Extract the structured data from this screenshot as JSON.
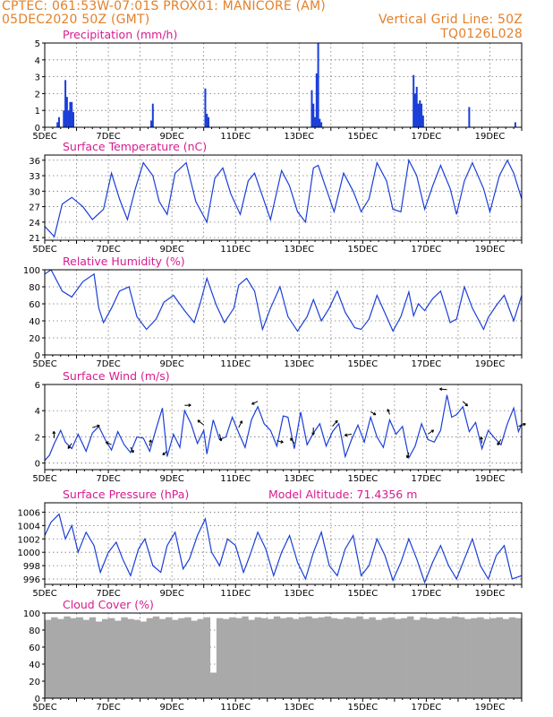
{
  "header": {
    "line1_left": "CPTEC:   061:53W-07:01S   PROX01: MANICORE (AM)",
    "line2_left": "05DEC2020 50Z (GMT)",
    "line2_right": "Vertical Grid Line: 50Z",
    "line3_right": "TQ0126L028"
  },
  "colors": {
    "series": "#1a3ed8",
    "title": "#d81b8f",
    "header": "#e3812a",
    "grid": "#777777",
    "cloud_fill": "#a9a9a9"
  },
  "x_tick_labels": [
    "5DEC",
    "7DEC",
    "9DEC",
    "11DEC",
    "13DEC",
    "15DEC",
    "17DEC",
    "19DEC"
  ],
  "chart_data": [
    {
      "type": "bar",
      "title": "Precipitation (mm/h)",
      "ylim": [
        0,
        5
      ],
      "yticks": [
        0,
        1,
        2,
        3,
        4,
        5
      ],
      "xlim": [
        5,
        20
      ],
      "grid": true,
      "x": [
        5.4,
        5.45,
        5.6,
        5.65,
        5.7,
        5.75,
        5.8,
        5.85,
        5.9,
        8.35,
        8.4,
        10.05,
        10.1,
        10.15,
        13.4,
        13.45,
        13.5,
        13.55,
        13.6,
        13.65,
        13.7,
        16.6,
        16.65,
        16.7,
        16.75,
        16.8,
        16.85,
        16.9,
        18.35,
        19.8
      ],
      "values": [
        0.3,
        0.6,
        1.0,
        2.8,
        1.8,
        1.0,
        1.5,
        1.5,
        0.9,
        0.4,
        1.4,
        2.3,
        0.8,
        0.6,
        2.2,
        1.4,
        0.6,
        3.2,
        5.0,
        0.5,
        0.3,
        3.1,
        2.0,
        2.4,
        1.4,
        1.6,
        1.4,
        0.7,
        1.2,
        0.3
      ]
    },
    {
      "type": "line",
      "title": "Surface Temperature (nC)",
      "ylim": [
        20.5,
        37
      ],
      "yticks": [
        21,
        24,
        27,
        30,
        33,
        36
      ],
      "xlim": [
        5,
        20
      ],
      "grid": true,
      "x": [
        5.0,
        5.3,
        5.55,
        5.85,
        6.2,
        6.5,
        6.85,
        7.1,
        7.35,
        7.6,
        7.85,
        8.1,
        8.4,
        8.6,
        8.85,
        9.1,
        9.45,
        9.75,
        10.1,
        10.35,
        10.6,
        10.85,
        11.15,
        11.4,
        11.6,
        11.85,
        12.1,
        12.45,
        12.7,
        12.95,
        13.2,
        13.45,
        13.6,
        13.85,
        14.1,
        14.4,
        14.7,
        14.95,
        15.2,
        15.45,
        15.75,
        15.95,
        16.2,
        16.45,
        16.7,
        16.95,
        17.2,
        17.45,
        17.75,
        17.95,
        18.2,
        18.45,
        18.8,
        19.0,
        19.3,
        19.55,
        19.75,
        20.0
      ],
      "values": [
        23.2,
        21.2,
        27.5,
        28.8,
        27.0,
        24.5,
        26.5,
        33.5,
        28.5,
        24.5,
        30.5,
        35.5,
        33.0,
        28.0,
        25.5,
        33.5,
        35.5,
        28.0,
        24.0,
        32.5,
        34.5,
        29.5,
        25.5,
        32.0,
        33.5,
        29.0,
        24.5,
        34.0,
        31.0,
        26.0,
        24.0,
        34.5,
        35.0,
        30.5,
        26.0,
        33.5,
        30.0,
        26.0,
        28.5,
        35.5,
        32.0,
        26.5,
        26.0,
        36.0,
        33.0,
        26.5,
        31.0,
        35.0,
        30.5,
        25.5,
        32.0,
        35.5,
        30.5,
        26.0,
        33.0,
        36.0,
        33.5,
        28.5
      ]
    },
    {
      "type": "line",
      "title": "Relative Humidity (%)",
      "ylim": [
        0,
        100
      ],
      "yticks": [
        0,
        20,
        40,
        60,
        80,
        100
      ],
      "xlim": [
        5,
        20
      ],
      "grid": true,
      "x": [
        5.0,
        5.2,
        5.55,
        5.85,
        6.2,
        6.55,
        6.7,
        6.85,
        7.1,
        7.35,
        7.65,
        7.9,
        8.2,
        8.5,
        8.75,
        9.05,
        9.4,
        9.7,
        9.9,
        10.1,
        10.4,
        10.65,
        10.95,
        11.1,
        11.35,
        11.6,
        11.85,
        12.1,
        12.4,
        12.65,
        12.95,
        13.25,
        13.45,
        13.7,
        13.95,
        14.2,
        14.45,
        14.75,
        14.95,
        15.2,
        15.45,
        15.75,
        15.95,
        16.2,
        16.45,
        16.6,
        16.75,
        16.95,
        17.2,
        17.45,
        17.75,
        17.95,
        18.2,
        18.45,
        18.8,
        18.95,
        19.2,
        19.45,
        19.75,
        20.0
      ],
      "values": [
        95,
        100,
        75,
        68,
        86,
        95,
        55,
        38,
        55,
        75,
        80,
        45,
        30,
        42,
        62,
        70,
        52,
        38,
        62,
        90,
        58,
        38,
        55,
        82,
        90,
        75,
        30,
        55,
        80,
        45,
        28,
        45,
        65,
        40,
        55,
        75,
        50,
        32,
        30,
        42,
        70,
        45,
        28,
        45,
        74,
        46,
        60,
        52,
        66,
        75,
        38,
        42,
        80,
        55,
        30,
        44,
        58,
        70,
        40,
        70
      ]
    },
    {
      "type": "line",
      "title": "Surface Wind (m/s)",
      "ylim": [
        -0.5,
        6
      ],
      "yticks": [
        0,
        2,
        4,
        6
      ],
      "xlim": [
        5,
        20
      ],
      "grid": true,
      "x": [
        5.0,
        5.15,
        5.3,
        5.5,
        5.65,
        5.85,
        6.05,
        6.3,
        6.5,
        6.7,
        6.9,
        7.1,
        7.3,
        7.5,
        7.7,
        7.9,
        8.1,
        8.3,
        8.5,
        8.7,
        8.85,
        9.05,
        9.25,
        9.4,
        9.6,
        9.8,
        10.0,
        10.1,
        10.3,
        10.5,
        10.7,
        10.9,
        11.1,
        11.3,
        11.5,
        11.7,
        11.9,
        12.1,
        12.3,
        12.5,
        12.65,
        12.85,
        13.05,
        13.25,
        13.45,
        13.65,
        13.85,
        14.05,
        14.25,
        14.45,
        14.65,
        14.85,
        15.05,
        15.25,
        15.45,
        15.65,
        15.85,
        16.05,
        16.25,
        16.45,
        16.65,
        16.85,
        17.05,
        17.25,
        17.45,
        17.65,
        17.8,
        17.95,
        18.15,
        18.35,
        18.55,
        18.75,
        18.95,
        19.15,
        19.35,
        19.55,
        19.75,
        19.9,
        20.0
      ],
      "values": [
        0.2,
        0.6,
        1.5,
        2.5,
        1.6,
        1.1,
        2.2,
        0.9,
        2.3,
        2.8,
        1.8,
        1.0,
        2.4,
        1.4,
        0.8,
        2.0,
        1.9,
        0.9,
        2.6,
        4.2,
        0.5,
        2.2,
        1.2,
        4.0,
        3.0,
        1.5,
        2.5,
        0.7,
        3.3,
        1.8,
        2.0,
        3.5,
        2.3,
        1.2,
        3.3,
        4.3,
        3.0,
        2.5,
        1.3,
        3.6,
        3.5,
        1.1,
        3.9,
        1.4,
        2.3,
        3.0,
        1.3,
        2.4,
        3.0,
        0.5,
        1.8,
        2.9,
        1.6,
        3.5,
        2.0,
        1.2,
        3.3,
        2.2,
        2.8,
        0.4,
        1.3,
        3.0,
        1.8,
        1.6,
        2.5,
        5.2,
        3.5,
        3.7,
        4.3,
        2.4,
        3.1,
        1.1,
        2.5,
        1.9,
        1.4,
        3.0,
        4.2,
        2.4,
        3.0
      ]
    },
    {
      "type": "line",
      "title": "Surface Pressure (hPa)",
      "annotation": "Model Altitude: 71.4356 m",
      "ylim": [
        995.2,
        1007.4
      ],
      "yticks": [
        996,
        998,
        1000,
        1002,
        1004,
        1006
      ],
      "xlim": [
        5,
        20
      ],
      "grid": true,
      "x": [
        5.0,
        5.2,
        5.45,
        5.65,
        5.85,
        6.05,
        6.3,
        6.55,
        6.75,
        7.0,
        7.25,
        7.45,
        7.7,
        7.95,
        8.15,
        8.4,
        8.65,
        8.85,
        9.1,
        9.35,
        9.55,
        9.8,
        10.05,
        10.25,
        10.5,
        10.75,
        11.0,
        11.25,
        11.45,
        11.7,
        11.95,
        12.2,
        12.45,
        12.7,
        12.95,
        13.2,
        13.45,
        13.7,
        13.95,
        14.2,
        14.45,
        14.7,
        14.95,
        15.2,
        15.45,
        15.7,
        15.95,
        16.2,
        16.45,
        16.7,
        16.95,
        17.2,
        17.45,
        17.7,
        17.95,
        18.2,
        18.45,
        18.7,
        18.95,
        19.2,
        19.45,
        19.7,
        20.0
      ],
      "values": [
        1002.5,
        1004.5,
        1005.7,
        1002.0,
        1004.0,
        1000.0,
        1003.0,
        1001.0,
        997.0,
        1000.0,
        1001.5,
        999.0,
        996.5,
        1000.5,
        1002.0,
        998.0,
        997.0,
        1001.0,
        1003.0,
        997.5,
        999.0,
        1002.5,
        1005.0,
        1000.0,
        998.0,
        1002.0,
        1001.0,
        997.0,
        999.5,
        1003.0,
        1000.5,
        996.5,
        1000.0,
        1002.5,
        998.5,
        996.0,
        1000.0,
        1003.0,
        998.0,
        996.5,
        1000.5,
        1002.5,
        996.5,
        998.0,
        1002.0,
        999.5,
        995.8,
        998.5,
        1002.0,
        999.0,
        995.5,
        998.5,
        1001.0,
        998.0,
        996.0,
        999.0,
        1002.0,
        998.0,
        996.0,
        999.5,
        1001.0,
        996.0,
        996.5
      ]
    },
    {
      "type": "area",
      "title": "Cloud Cover (%)",
      "ylim": [
        0,
        100
      ],
      "yticks": [
        0,
        20,
        40,
        60,
        80,
        100
      ],
      "xlim": [
        5,
        20
      ],
      "grid": true,
      "x": [
        5.0,
        5.2,
        5.4,
        5.6,
        5.8,
        6.0,
        6.2,
        6.4,
        6.6,
        6.8,
        7.0,
        7.2,
        7.4,
        7.6,
        7.8,
        8.0,
        8.2,
        8.4,
        8.6,
        8.8,
        9.0,
        9.2,
        9.4,
        9.6,
        9.8,
        10.0,
        10.2,
        10.4,
        10.6,
        10.8,
        11.0,
        11.2,
        11.4,
        11.6,
        11.8,
        12.0,
        12.2,
        12.4,
        12.6,
        12.8,
        13.0,
        13.2,
        13.4,
        13.6,
        13.8,
        14.0,
        14.2,
        14.4,
        14.6,
        14.8,
        15.0,
        15.2,
        15.4,
        15.6,
        15.8,
        16.0,
        16.2,
        16.4,
        16.6,
        16.8,
        17.0,
        17.2,
        17.4,
        17.6,
        17.8,
        18.0,
        18.2,
        18.4,
        18.6,
        18.8,
        19.0,
        19.2,
        19.4,
        19.6,
        19.8,
        20.0
      ],
      "values": [
        92,
        95,
        93,
        96,
        94,
        95,
        92,
        95,
        90,
        93,
        94,
        91,
        95,
        93,
        92,
        90,
        94,
        96,
        93,
        95,
        92,
        94,
        95,
        91,
        93,
        95,
        30,
        94,
        93,
        95,
        94,
        96,
        92,
        95,
        94,
        93,
        96,
        94,
        95,
        93,
        95,
        96,
        94,
        95,
        96,
        94,
        93,
        95,
        94,
        96,
        93,
        95,
        92,
        94,
        95,
        93,
        94,
        96,
        92,
        95,
        94,
        93,
        95,
        94,
        96,
        95,
        93,
        94,
        95,
        93,
        94,
        95,
        93,
        95,
        94,
        95
      ]
    }
  ]
}
